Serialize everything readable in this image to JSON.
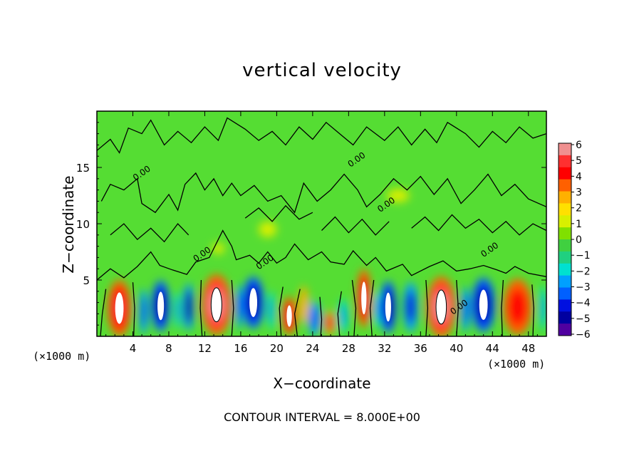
{
  "chart_data": {
    "type": "heatmap",
    "title": "vertical velocity",
    "xlabel": "X−coordinate",
    "ylabel": "Z−coordinate",
    "x_unit_left": "(×1000 m)",
    "x_unit_right": "(×1000 m)",
    "footer": "CONTOUR INTERVAL = 8.000E+00",
    "contour_label": "0.00",
    "xlim": [
      0,
      50
    ],
    "ylim": [
      0,
      20
    ],
    "x_ticks": [
      4,
      8,
      12,
      16,
      20,
      24,
      28,
      32,
      36,
      40,
      44,
      48
    ],
    "y_ticks": [
      5,
      10,
      15
    ],
    "colorbar": {
      "ticks": [
        6,
        5,
        4,
        3,
        2,
        1,
        0,
        -1,
        -2,
        -3,
        -4,
        -5,
        -6
      ],
      "tick_labels": [
        "6",
        "5",
        "4",
        "3",
        "2",
        "1",
        "0",
        "−1",
        "−2",
        "−3",
        "−4",
        "−5",
        "−6"
      ],
      "colors": [
        "#f09090",
        "#ff3030",
        "#ff0000",
        "#ff6000",
        "#ffb000",
        "#ffe000",
        "#d8f000",
        "#80e000",
        "#40d040",
        "#20d080",
        "#00e0d0",
        "#00a0ff",
        "#0060ff",
        "#0010e0",
        "#0000a0",
        "#5000a0"
      ]
    },
    "background_color": "#55dd33",
    "cells": [
      {
        "x": 2.5,
        "z": 2.5,
        "w": 2.6,
        "h": 5.0,
        "value": 5.5
      },
      {
        "x": 5.2,
        "z": 2.2,
        "w": 1.0,
        "h": 4.0,
        "value": -3.5
      },
      {
        "x": 7.1,
        "z": 2.7,
        "w": 2.0,
        "h": 4.5,
        "value": -5.5
      },
      {
        "x": 9.0,
        "z": 2.3,
        "w": 0.7,
        "h": 3.4,
        "value": -3.0
      },
      {
        "x": 10.2,
        "z": 2.6,
        "w": 1.2,
        "h": 4.2,
        "value": -5.0
      },
      {
        "x": 13.3,
        "z": 2.8,
        "w": 3.3,
        "h": 5.4,
        "value": 6.0
      },
      {
        "x": 15.8,
        "z": 2.6,
        "w": 0.8,
        "h": 4.0,
        "value": -3.5
      },
      {
        "x": 17.4,
        "z": 3.0,
        "w": 2.4,
        "h": 4.6,
        "value": -5.5
      },
      {
        "x": 19.4,
        "z": 2.3,
        "w": 0.8,
        "h": 3.4,
        "value": -3.0
      },
      {
        "x": 21.4,
        "z": 1.8,
        "w": 1.6,
        "h": 3.4,
        "value": 5.5
      },
      {
        "x": 23.0,
        "z": 2.8,
        "w": 1.0,
        "h": 3.4,
        "value": 2.5
      },
      {
        "x": 24.2,
        "z": 1.6,
        "w": 1.4,
        "h": 3.0,
        "value": -3.5
      },
      {
        "x": 25.9,
        "z": 1.2,
        "w": 1.2,
        "h": 2.2,
        "value": 5.0
      },
      {
        "x": 27.4,
        "z": 1.8,
        "w": 1.0,
        "h": 3.0,
        "value": -3.0
      },
      {
        "x": 29.7,
        "z": 3.4,
        "w": 1.6,
        "h": 5.2,
        "value": 5.5
      },
      {
        "x": 31.2,
        "z": 2.4,
        "w": 0.8,
        "h": 3.4,
        "value": -3.0
      },
      {
        "x": 32.4,
        "z": 2.6,
        "w": 1.8,
        "h": 4.6,
        "value": -5.5
      },
      {
        "x": 34.9,
        "z": 2.6,
        "w": 1.6,
        "h": 4.4,
        "value": -4.0
      },
      {
        "x": 38.3,
        "z": 2.6,
        "w": 3.2,
        "h": 5.4,
        "value": 6.0
      },
      {
        "x": 41.0,
        "z": 2.4,
        "w": 1.0,
        "h": 4.0,
        "value": -3.5
      },
      {
        "x": 43.0,
        "z": 2.8,
        "w": 2.6,
        "h": 4.8,
        "value": -5.5
      },
      {
        "x": 46.8,
        "z": 2.6,
        "w": 3.2,
        "h": 5.0,
        "value": 4.5
      },
      {
        "x": 49.6,
        "z": 2.5,
        "w": 0.8,
        "h": 4.0,
        "value": -3.0
      },
      {
        "x": 19.0,
        "z": 9.5,
        "w": 2.0,
        "h": 1.4,
        "value": 1.0
      },
      {
        "x": 33.5,
        "z": 12.5,
        "w": 2.5,
        "h": 1.2,
        "value": 1.0
      },
      {
        "x": 13.5,
        "z": 7.8,
        "w": 1.4,
        "h": 1.0,
        "value": 1.2
      }
    ],
    "zero_contour_lines": [
      [
        [
          0,
          5.0
        ],
        [
          1.5,
          6.0
        ],
        [
          3.0,
          5.2
        ],
        [
          4.5,
          6.2
        ],
        [
          6.0,
          7.5
        ],
        [
          7.0,
          6.3
        ],
        [
          8.4,
          5.9
        ],
        [
          10.0,
          5.5
        ],
        [
          11.0,
          6.6
        ],
        [
          12.5,
          7.0
        ],
        [
          13.5,
          8.6
        ],
        [
          14.0,
          9.4
        ],
        [
          15.0,
          8.0
        ],
        [
          15.5,
          6.8
        ],
        [
          17.0,
          7.2
        ],
        [
          18.0,
          6.5
        ],
        [
          19.0,
          7.5
        ],
        [
          20.0,
          6.5
        ],
        [
          21.0,
          7.0
        ],
        [
          22.0,
          8.2
        ],
        [
          23.5,
          6.8
        ],
        [
          25.0,
          7.5
        ],
        [
          26.0,
          6.6
        ],
        [
          27.5,
          6.4
        ],
        [
          28.5,
          7.6
        ],
        [
          30.0,
          6.3
        ],
        [
          31.0,
          7.0
        ],
        [
          32.2,
          5.8
        ],
        [
          34.0,
          6.4
        ],
        [
          35.0,
          5.4
        ],
        [
          37.0,
          6.2
        ],
        [
          38.5,
          6.7
        ],
        [
          40.0,
          5.8
        ],
        [
          41.5,
          6.0
        ],
        [
          43.0,
          6.3
        ],
        [
          44.5,
          5.9
        ],
        [
          45.5,
          5.6
        ],
        [
          46.5,
          6.2
        ],
        [
          48.0,
          5.6
        ],
        [
          50.0,
          5.3
        ]
      ],
      [
        [
          0.5,
          12.0
        ],
        [
          1.5,
          13.5
        ],
        [
          3.0,
          13.0
        ],
        [
          4.5,
          14.0
        ],
        [
          5.0,
          11.8
        ],
        [
          6.5,
          11.0
        ],
        [
          8.0,
          12.6
        ],
        [
          9.0,
          11.2
        ],
        [
          9.8,
          13.5
        ],
        [
          11.0,
          14.5
        ],
        [
          12.0,
          13.0
        ],
        [
          13.0,
          14.0
        ],
        [
          14.0,
          12.5
        ],
        [
          15.0,
          13.6
        ],
        [
          16.0,
          12.5
        ],
        [
          17.5,
          13.4
        ],
        [
          19.0,
          12.0
        ],
        [
          20.5,
          12.5
        ],
        [
          22.0,
          11.0
        ],
        [
          23.0,
          13.6
        ],
        [
          24.5,
          12.0
        ],
        [
          26.0,
          13.0
        ],
        [
          27.5,
          14.4
        ],
        [
          29.0,
          13.0
        ],
        [
          30.0,
          11.5
        ],
        [
          31.5,
          12.6
        ],
        [
          33.0,
          14.0
        ],
        [
          34.5,
          13.0
        ],
        [
          36.0,
          14.2
        ],
        [
          37.5,
          12.6
        ],
        [
          39.0,
          14.0
        ],
        [
          40.5,
          11.8
        ],
        [
          42.0,
          13.0
        ],
        [
          43.5,
          14.4
        ],
        [
          45.0,
          12.5
        ],
        [
          46.5,
          13.5
        ],
        [
          48.0,
          12.2
        ],
        [
          50.0,
          11.5
        ]
      ],
      [
        [
          0,
          16.5
        ],
        [
          1.5,
          17.5
        ],
        [
          2.5,
          16.3
        ],
        [
          3.5,
          18.5
        ],
        [
          5.0,
          18.0
        ],
        [
          6.0,
          19.2
        ],
        [
          7.5,
          17.0
        ],
        [
          9.0,
          18.2
        ],
        [
          10.5,
          17.2
        ],
        [
          12.0,
          18.6
        ],
        [
          13.5,
          17.4
        ],
        [
          14.5,
          19.4
        ],
        [
          16.5,
          18.4
        ],
        [
          18.0,
          17.4
        ],
        [
          19.5,
          18.2
        ],
        [
          21.0,
          17.0
        ],
        [
          22.5,
          18.6
        ],
        [
          24.0,
          17.5
        ],
        [
          25.5,
          19.0
        ],
        [
          27.0,
          18.0
        ],
        [
          28.5,
          17.0
        ],
        [
          30.0,
          18.6
        ],
        [
          32.0,
          17.4
        ],
        [
          33.5,
          18.6
        ],
        [
          35.0,
          17.0
        ],
        [
          36.5,
          18.4
        ],
        [
          37.8,
          17.2
        ],
        [
          39.0,
          19.0
        ],
        [
          41.0,
          18.0
        ],
        [
          42.5,
          16.8
        ],
        [
          44.0,
          18.2
        ],
        [
          45.5,
          17.2
        ],
        [
          47.0,
          18.6
        ],
        [
          48.5,
          17.6
        ],
        [
          50.0,
          18.0
        ]
      ],
      [
        [
          1.5,
          9.0
        ],
        [
          3.0,
          10.0
        ],
        [
          4.5,
          8.6
        ],
        [
          6.0,
          9.6
        ],
        [
          7.5,
          8.4
        ],
        [
          9.0,
          10.0
        ],
        [
          10.2,
          9.0
        ]
      ],
      [
        [
          16.5,
          10.5
        ],
        [
          18.0,
          11.4
        ],
        [
          19.5,
          10.2
        ],
        [
          21.0,
          11.6
        ],
        [
          22.5,
          10.4
        ],
        [
          24.0,
          11.0
        ]
      ],
      [
        [
          25.0,
          9.4
        ],
        [
          26.5,
          10.6
        ],
        [
          28.0,
          9.2
        ],
        [
          29.5,
          10.4
        ],
        [
          31.0,
          9.0
        ],
        [
          32.5,
          10.2
        ]
      ],
      [
        [
          35.0,
          9.6
        ],
        [
          36.5,
          10.6
        ],
        [
          38.0,
          9.4
        ],
        [
          39.5,
          10.8
        ],
        [
          41.0,
          9.6
        ],
        [
          42.5,
          10.4
        ],
        [
          44.0,
          9.2
        ],
        [
          45.5,
          10.2
        ],
        [
          47.0,
          9.0
        ],
        [
          48.5,
          10.0
        ],
        [
          50.0,
          9.4
        ]
      ],
      [
        [
          0.4,
          0
        ],
        [
          0.6,
          2.0
        ],
        [
          1.0,
          4.2
        ]
      ],
      [
        [
          4.1,
          0
        ],
        [
          4.2,
          2.5
        ],
        [
          4.0,
          4.8
        ]
      ],
      [
        [
          11.7,
          0
        ],
        [
          11.5,
          2.5
        ],
        [
          11.6,
          5.0
        ]
      ],
      [
        [
          15.0,
          0
        ],
        [
          15.2,
          2.5
        ],
        [
          15.0,
          5.0
        ]
      ],
      [
        [
          20.5,
          0
        ],
        [
          20.3,
          2.5
        ],
        [
          20.7,
          4.4
        ]
      ],
      [
        [
          22.3,
          0
        ],
        [
          22.0,
          2.0
        ],
        [
          22.6,
          4.2
        ]
      ],
      [
        [
          24.9,
          0
        ],
        [
          25.0,
          1.5
        ],
        [
          24.8,
          3.5
        ]
      ],
      [
        [
          27.0,
          0
        ],
        [
          26.8,
          2.0
        ],
        [
          27.2,
          4.0
        ]
      ],
      [
        [
          28.6,
          0
        ],
        [
          28.8,
          2.5
        ],
        [
          28.4,
          5.0
        ]
      ],
      [
        [
          30.6,
          0
        ],
        [
          30.4,
          2.5
        ],
        [
          30.8,
          5.0
        ]
      ],
      [
        [
          36.6,
          0
        ],
        [
          36.8,
          2.5
        ],
        [
          36.6,
          5.0
        ]
      ],
      [
        [
          40.0,
          0
        ],
        [
          40.2,
          2.5
        ],
        [
          40.0,
          5.0
        ]
      ],
      [
        [
          45.1,
          0
        ],
        [
          45.0,
          2.5
        ],
        [
          45.2,
          5.0
        ]
      ],
      [
        [
          48.5,
          0
        ],
        [
          48.6,
          2.5
        ],
        [
          48.4,
          4.6
        ]
      ]
    ],
    "contour_label_positions": [
      {
        "x": 4.3,
        "z": 13.8
      },
      {
        "x": 11.0,
        "z": 6.6
      },
      {
        "x": 18.0,
        "z": 5.9
      },
      {
        "x": 28.2,
        "z": 15.0
      },
      {
        "x": 31.5,
        "z": 11.0
      },
      {
        "x": 39.6,
        "z": 1.9
      },
      {
        "x": 43.0,
        "z": 7.0
      }
    ]
  }
}
